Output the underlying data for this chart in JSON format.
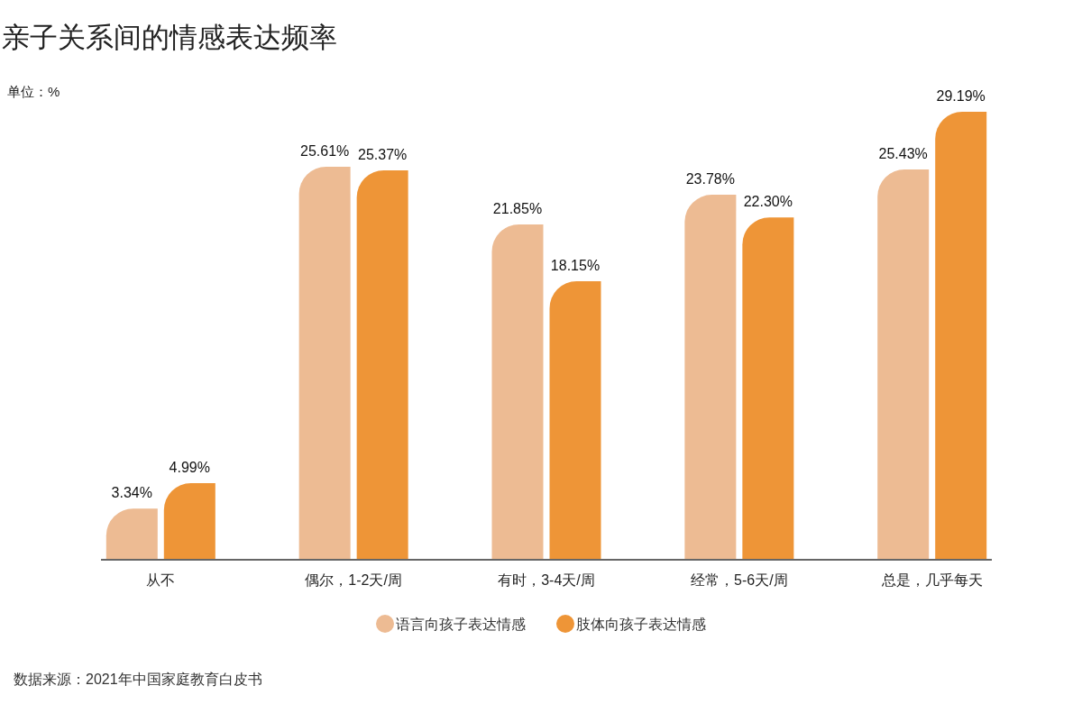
{
  "chart_data": {
    "type": "bar",
    "title": "亲子关系间的情感表达频率",
    "ylabel": "单位：%",
    "categories": [
      "从不",
      "偶尔，1-2天/周",
      "有时，3-4天/周",
      "经常，5-6天/周",
      "总是，几乎每天"
    ],
    "series": [
      {
        "name": "语言向孩子表达情感",
        "color": "#edbb93",
        "values": [
          3.34,
          25.61,
          21.85,
          23.78,
          25.43
        ],
        "value_labels": [
          "3.34%",
          "25.61%",
          "21.85%",
          "23.78%",
          "25.43%"
        ]
      },
      {
        "name": "肢体向孩子表达情感",
        "color": "#ee9537",
        "values": [
          4.99,
          25.37,
          18.15,
          22.3,
          29.19
        ],
        "value_labels": [
          "4.99%",
          "25.37%",
          "18.15%",
          "22.30%",
          "29.19%"
        ]
      }
    ],
    "legend": "bottom",
    "annotations": [
      "数据来源：2021年中国家庭教育白皮书"
    ]
  }
}
